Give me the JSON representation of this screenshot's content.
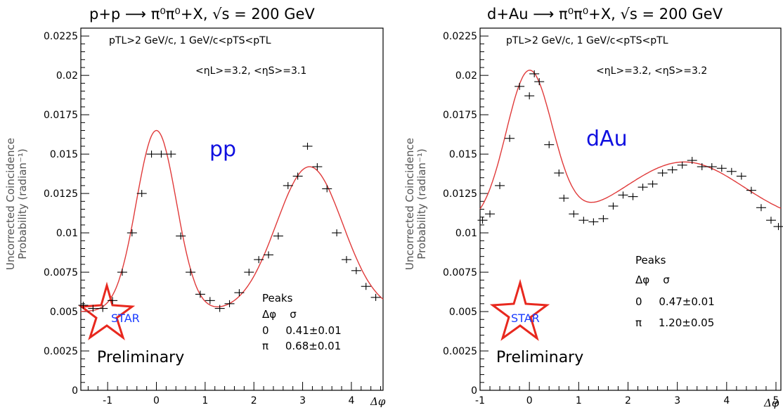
{
  "chart_data": [
    {
      "type": "scatter",
      "title": "p+p  ⟶  π⁰π⁰+X, √s = 200 GeV",
      "cuts_line1": "pTL>2 GeV/c,  1 GeV/c<pTS<pTL",
      "cuts_line2": "<ηL>=3.2, <ηS>=3.1",
      "ylabel_line1": "Uncorrected Coincidence",
      "ylabel_line2": "Probability (radian⁻¹)",
      "xlabel": "Δφ",
      "tag": "pp",
      "xlim": [
        -1.55,
        4.65
      ],
      "ylim": [
        0,
        0.023
      ],
      "xticks": [
        -1,
        0,
        1,
        2,
        3,
        4
      ],
      "xtick_labels": [
        "-1",
        "0",
        "1",
        "2",
        "3",
        "4"
      ],
      "yticks": [
        0,
        0.0025,
        0.005,
        0.0075,
        0.01,
        0.0125,
        0.015,
        0.0175,
        0.02,
        0.0225
      ],
      "ytick_labels": [
        "0",
        "0.0025",
        "0.005",
        "0.0075",
        "0.01",
        "0.0125",
        "0.015",
        "0.0175",
        "0.02",
        "0.0225"
      ],
      "grid": false,
      "series": [
        {
          "x": [
            -1.5,
            -1.3,
            -1.1,
            -0.9,
            -0.7,
            -0.5,
            -0.3,
            -0.1,
            0.1,
            0.3,
            0.5,
            0.7,
            0.9,
            1.1,
            1.3,
            1.5,
            1.7,
            1.9,
            2.1,
            2.3,
            2.5,
            2.7,
            2.9,
            3.1,
            3.3,
            3.5,
            3.7,
            3.9,
            4.1,
            4.3,
            4.5
          ],
          "y": [
            0.0054,
            0.0052,
            0.0052,
            0.0057,
            0.0075,
            0.01,
            0.0125,
            0.015,
            0.015,
            0.015,
            0.0098,
            0.0075,
            0.0061,
            0.0057,
            0.0052,
            0.0055,
            0.0062,
            0.0075,
            0.0083,
            0.0086,
            0.0098,
            0.013,
            0.0136,
            0.0155,
            0.0142,
            0.0128,
            0.01,
            0.0083,
            0.0076,
            0.0066,
            0.0059
          ]
        }
      ],
      "fit": {
        "baseline": 0.005,
        "peak_amplitudes": [
          0.0115,
          0.0092
        ],
        "peak_centers": [
          0,
          3.14159
        ],
        "peak_widths": [
          0.41,
          0.68
        ]
      },
      "peaks_header": "Peaks",
      "peaks_cols": "Δφ    σ",
      "peaks_rows": [
        "0     0.41±0.01",
        "π     0.68±0.01"
      ],
      "logo_text": "STAR",
      "preliminary": "Preliminary"
    },
    {
      "type": "scatter",
      "title": "d+Au  ⟶  π⁰π⁰+X, √s = 200 GeV",
      "cuts_line1": "pTL>2 GeV/c,  1 GeV/c<pTS<pTL",
      "cuts_line2": "<ηL>=3.2, <ηS>=3.2",
      "ylabel_line1": "Uncorrected Coincidence",
      "ylabel_line2": "Probability (radian⁻¹)",
      "xlabel": "Δφ",
      "tag": "dAu",
      "xlim": [
        -1,
        5.1
      ],
      "ylim": [
        0,
        0.023
      ],
      "xticks": [
        -1,
        0,
        1,
        2,
        3,
        4,
        5
      ],
      "xtick_labels": [
        "-1",
        "0",
        "1",
        "2",
        "3",
        "4",
        "5"
      ],
      "yticks": [
        0,
        0.0025,
        0.005,
        0.0075,
        0.01,
        0.0125,
        0.015,
        0.0175,
        0.02,
        0.0225
      ],
      "ytick_labels": [
        "0",
        "0.0025",
        "0.005",
        "0.0075",
        "0.01",
        "0.0125",
        "0.015",
        "0.0175",
        "0.02",
        "0.0225"
      ],
      "grid": false,
      "series": [
        {
          "x": [
            -0.95,
            -0.8,
            -0.6,
            -0.4,
            -0.2,
            0.0,
            0.1,
            0.2,
            0.4,
            0.6,
            0.7,
            0.9,
            1.1,
            1.3,
            1.5,
            1.7,
            1.9,
            2.1,
            2.3,
            2.5,
            2.7,
            2.9,
            3.1,
            3.3,
            3.5,
            3.7,
            3.9,
            4.1,
            4.3,
            4.5,
            4.7,
            4.9,
            5.05
          ],
          "y": [
            0.0108,
            0.0112,
            0.013,
            0.016,
            0.0193,
            0.0187,
            0.0201,
            0.0196,
            0.0156,
            0.0138,
            0.0122,
            0.0112,
            0.0108,
            0.0107,
            0.0109,
            0.0117,
            0.0124,
            0.0123,
            0.0129,
            0.0131,
            0.0138,
            0.014,
            0.0143,
            0.0146,
            0.0142,
            0.0142,
            0.0141,
            0.0139,
            0.0136,
            0.0127,
            0.0116,
            0.0108,
            0.0104
          ]
        }
      ],
      "fit": {
        "baseline": 0.0105,
        "peak_amplitudes": [
          0.0097,
          0.004
        ],
        "peak_centers": [
          0,
          3.14159
        ],
        "peak_widths": [
          0.47,
          1.2
        ]
      },
      "peaks_header": "Peaks",
      "peaks_cols": "Δφ    σ",
      "peaks_rows": [
        "0     0.47±0.01",
        "π     1.20±0.05"
      ],
      "logo_text": "STAR",
      "preliminary": "Preliminary"
    }
  ]
}
